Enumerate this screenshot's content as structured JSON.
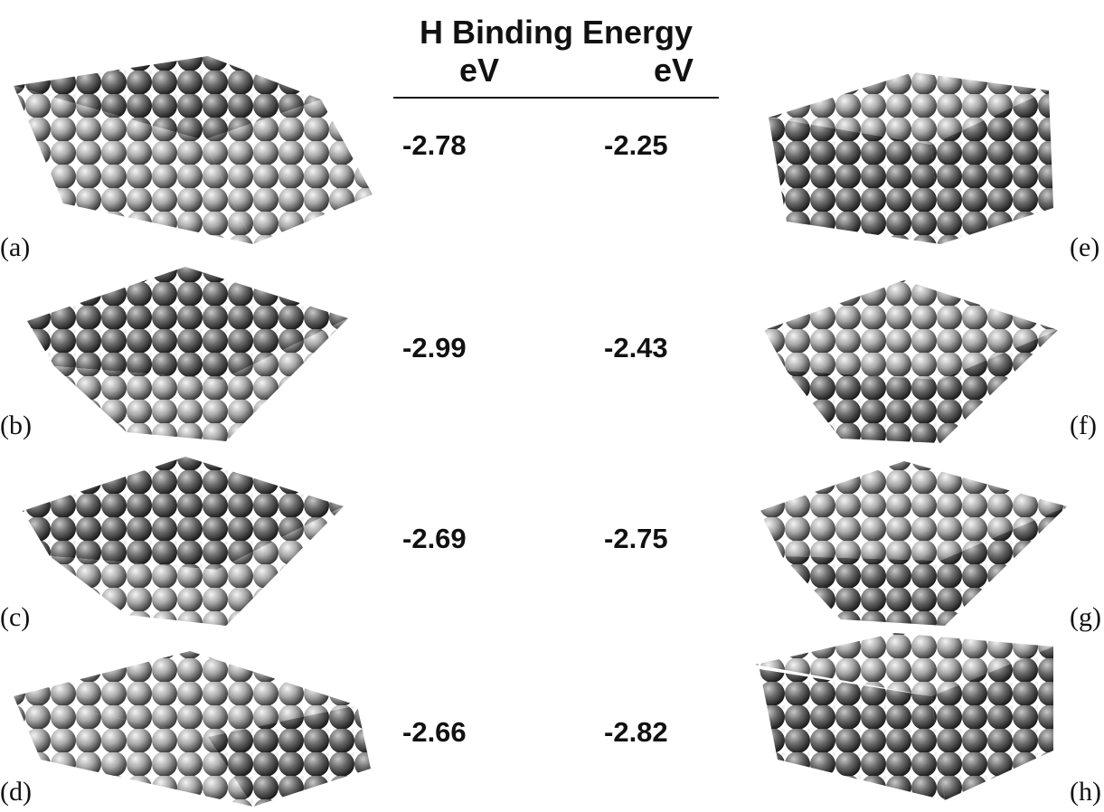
{
  "header": {
    "title": "H Binding Energy",
    "units": [
      "eV",
      "eV"
    ]
  },
  "rows": [
    {
      "left_label": "(a)",
      "left_value": "-2.78",
      "right_value": "-2.25",
      "right_label": "(e)"
    },
    {
      "left_label": "(b)",
      "left_value": "-2.99",
      "right_value": "-2.43",
      "right_label": "(f)"
    },
    {
      "left_label": "(c)",
      "left_value": "-2.69",
      "right_value": "-2.75",
      "right_label": "(g)"
    },
    {
      "left_label": "(d)",
      "left_value": "-2.66",
      "right_value": "-2.82",
      "right_label": "(h)"
    }
  ]
}
